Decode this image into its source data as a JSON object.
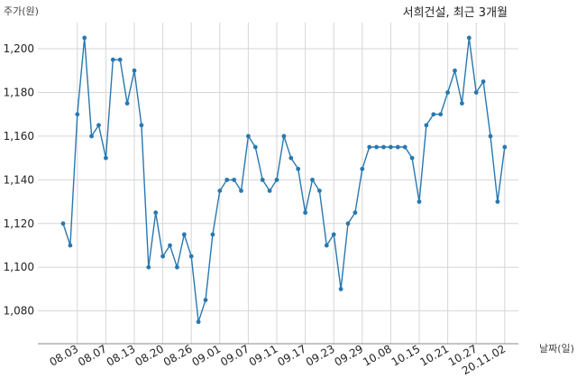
{
  "chart_data": {
    "type": "line",
    "title": "서희건설, 최근 3개월",
    "ylabel": "주가(원)",
    "xlabel": "날짜(일)",
    "ylim": [
      1065,
      1212
    ],
    "yticks": [
      1080,
      1100,
      1120,
      1140,
      1160,
      1180,
      1200
    ],
    "ytick_labels": [
      "1,080",
      "1,100",
      "1,120",
      "1,140",
      "1,160",
      "1,180",
      "1,200"
    ],
    "x_tick_labels": [
      "08.03",
      "08.07",
      "08.13",
      "08.20",
      "08.26",
      "09.01",
      "09.07",
      "09.11",
      "09.17",
      "09.23",
      "09.29",
      "10.08",
      "10.15",
      "10.21",
      "10.27",
      "20.11.02"
    ],
    "x_tick_index": [
      2,
      6,
      10,
      14,
      18,
      22,
      26,
      30,
      34,
      38,
      42,
      46,
      50,
      54,
      58,
      62
    ],
    "grid": true,
    "series": [
      {
        "color": "#2878b0",
        "values": [
          1120,
          1110,
          1170,
          1205,
          1160,
          1165,
          1150,
          1195,
          1195,
          1175,
          1190,
          1165,
          1100,
          1125,
          1105,
          1110,
          1100,
          1115,
          1105,
          1075,
          1085,
          1115,
          1135,
          1140,
          1140,
          1135,
          1160,
          1155,
          1140,
          1135,
          1140,
          1160,
          1150,
          1145,
          1125,
          1140,
          1135,
          1110,
          1115,
          1090,
          1120,
          1125,
          1145,
          1155,
          1155,
          1155,
          1155,
          1155,
          1155,
          1150,
          1130,
          1165,
          1170,
          1170,
          1180,
          1190,
          1175,
          1205,
          1180,
          1185,
          1160,
          1130,
          1155
        ]
      }
    ]
  }
}
